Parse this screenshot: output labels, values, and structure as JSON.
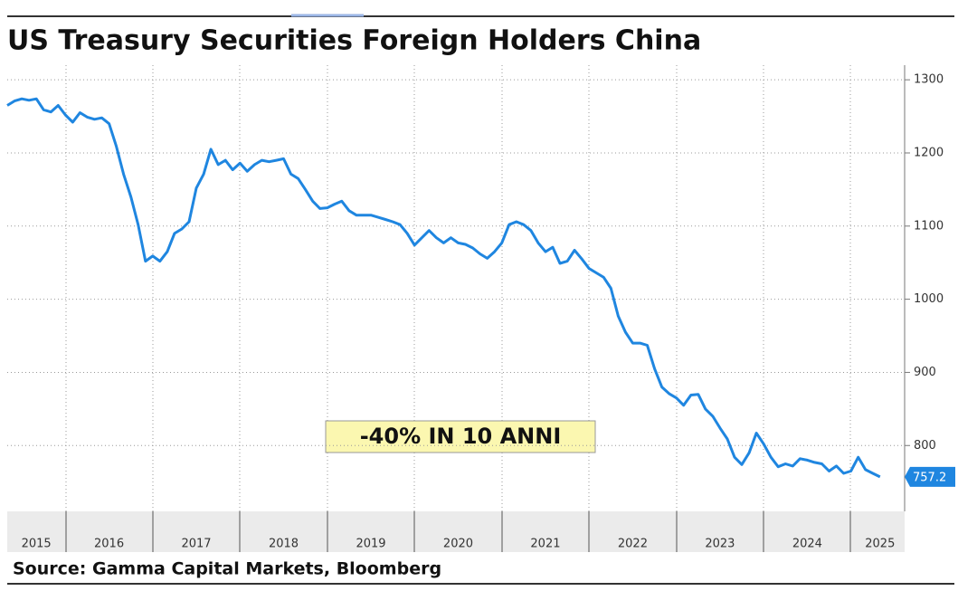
{
  "chart_data": {
    "type": "line",
    "title": "US Treasury Securities Foreign Holders China",
    "source": "Source: Gamma Capital Markets, Bloomberg",
    "annotation": "-40% IN 10 ANNI",
    "categories": [
      null,
      null,
      null,
      null,
      "2015",
      null,
      null,
      null,
      null,
      null,
      null,
      null,
      null,
      null,
      "2016",
      null,
      null,
      null,
      null,
      null,
      null,
      null,
      null,
      null,
      null,
      null,
      "2017",
      null,
      null,
      null,
      null,
      null,
      null,
      null,
      null,
      null,
      null,
      null,
      "2018",
      null,
      null,
      null,
      null,
      null,
      null,
      null,
      null,
      null,
      null,
      null,
      "2019",
      null,
      null,
      null,
      null,
      null,
      null,
      null,
      null,
      null,
      null,
      null,
      "2020",
      null,
      null,
      null,
      null,
      null,
      null,
      null,
      null,
      null,
      null,
      null,
      "2021",
      null,
      null,
      null,
      null,
      null,
      null,
      null,
      null,
      null,
      null,
      null,
      "2022",
      null,
      null,
      null,
      null,
      null,
      null,
      null,
      null,
      null,
      null,
      null,
      "2023",
      null,
      null,
      null,
      null,
      null,
      null,
      null,
      null,
      null,
      null,
      null,
      "2024",
      null,
      null,
      null,
      null,
      null,
      null,
      null,
      null,
      null,
      "2025"
    ],
    "series": [
      {
        "color": "#1f86e0",
        "values": [
          1265,
          1271,
          1274,
          1272,
          1274,
          1259,
          1256,
          1265,
          1252,
          1242,
          1255,
          1249,
          1246,
          1248,
          1240,
          1209,
          1171,
          1140,
          1102,
          1052,
          1059,
          1052,
          1065,
          1090,
          1096,
          1106,
          1152,
          1171,
          1205,
          1184,
          1190,
          1177,
          1186,
          1175,
          1184,
          1190,
          1188,
          1190,
          1192,
          1171,
          1165,
          1150,
          1134,
          1124,
          1125,
          1130,
          1134,
          1121,
          1115,
          1115,
          1115,
          1112,
          1109,
          1106,
          1102,
          1090,
          1074,
          1084,
          1094,
          1084,
          1077,
          1084,
          1077,
          1075,
          1070,
          1062,
          1056,
          1065,
          1077,
          1102,
          1106,
          1102,
          1094,
          1077,
          1065,
          1071,
          1049,
          1052,
          1067,
          1055,
          1042,
          1036,
          1030,
          1015,
          977,
          955,
          940,
          940,
          937,
          905,
          880,
          871,
          865,
          855,
          869,
          870,
          850,
          840,
          824,
          809,
          784,
          774,
          790,
          817,
          802,
          784,
          771,
          775,
          772,
          782,
          780,
          777,
          775,
          765,
          772,
          762,
          765,
          784,
          767,
          762,
          757.2
        ]
      }
    ],
    "ylim": [
      710,
      1320
    ],
    "yticks": [
      800,
      900,
      1000,
      1100,
      1200,
      1300
    ],
    "grid": true
  }
}
